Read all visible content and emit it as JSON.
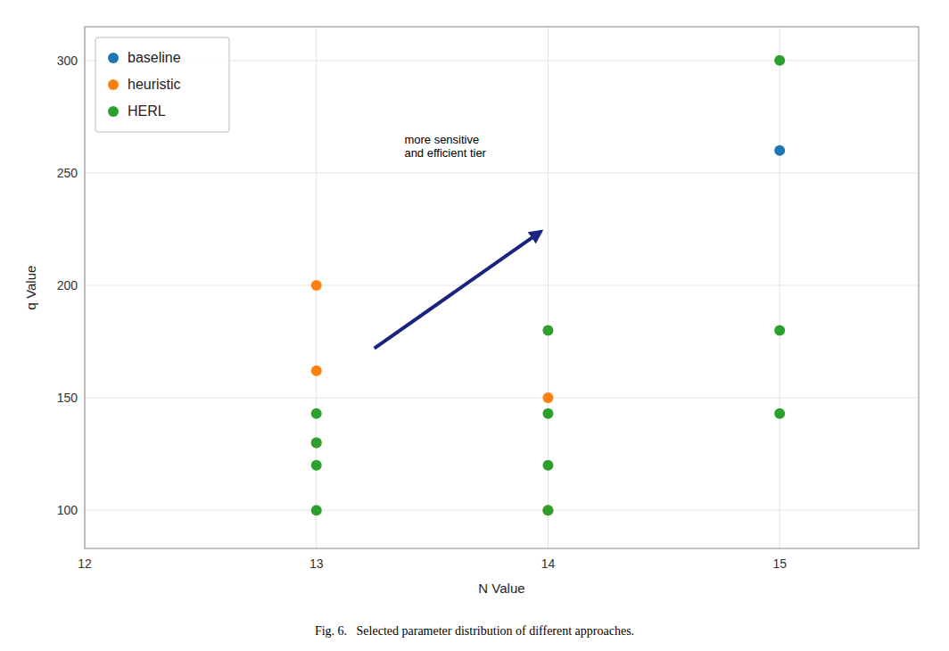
{
  "chart_data": {
    "type": "scatter",
    "x_label": "N Value",
    "y_label": "q Value",
    "caption": "Fig. 6.   Selected parameter distribution of different approaches.",
    "series": [
      {
        "name": "baseline",
        "color": "#1f77b4",
        "x": [
          15
        ],
        "values": [
          260
        ]
      },
      {
        "name": "heuristic",
        "color": "#ff7f0e",
        "x": [
          13,
          13,
          13,
          14,
          14
        ],
        "values": [
          200,
          162,
          130,
          150,
          100
        ]
      },
      {
        "name": "HERL",
        "color": "#2ca02c",
        "x": [
          13,
          13,
          13,
          13,
          14,
          14,
          14,
          14,
          15,
          15,
          15
        ],
        "values": [
          143,
          130,
          120,
          100,
          180,
          143,
          120,
          100,
          300,
          180,
          143
        ]
      }
    ],
    "xlim": [
      12,
      15.6
    ],
    "ylim": [
      83,
      315
    ],
    "xticks": [
      12,
      13,
      14,
      15
    ],
    "yticks": [
      100,
      150,
      200,
      250,
      300
    ],
    "grid": true,
    "legend": "upper left",
    "annotations": [
      {
        "text": "more sensitive\nand efficient tier",
        "x": 13.38,
        "y": 256,
        "arrow_from": [
          13.25,
          172
        ],
        "arrow_to": [
          13.97,
          224
        ],
        "color": "#1a237e"
      }
    ]
  }
}
